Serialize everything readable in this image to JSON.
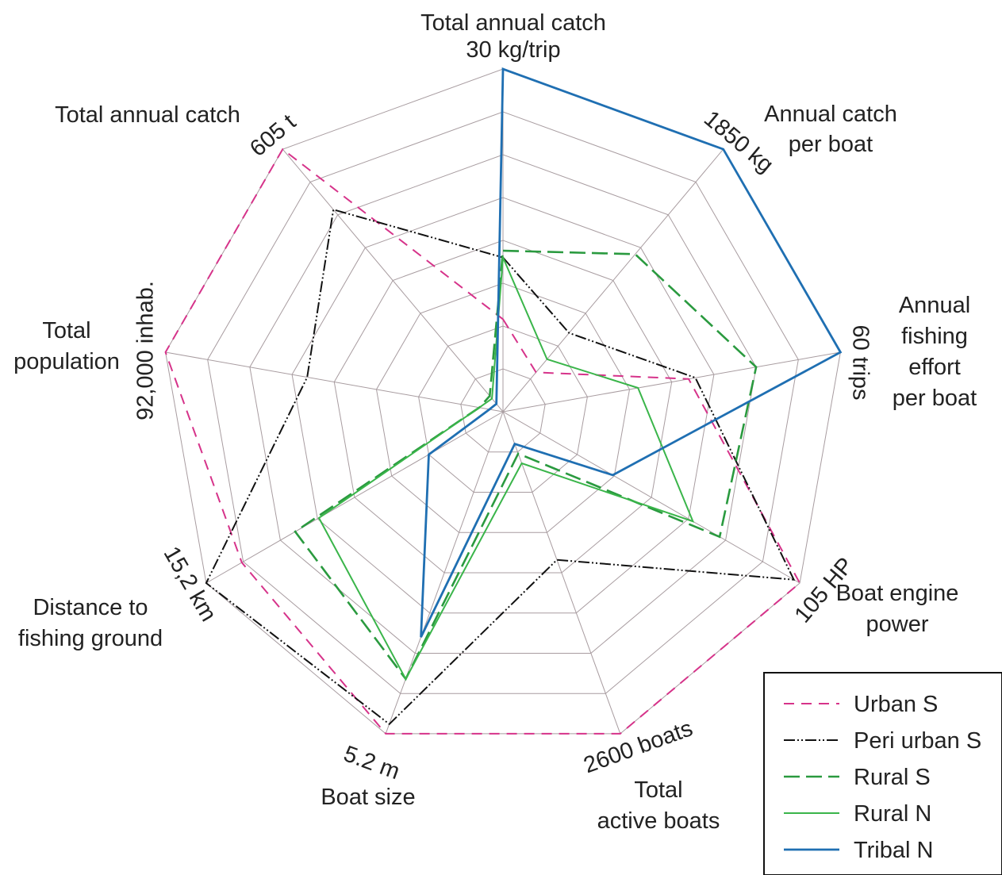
{
  "chart_data": {
    "type": "radar",
    "axes": [
      {
        "label": "Total annual catch 30 kg/trip",
        "label_lines": [
          "Total annual catch",
          "30 kg/trip"
        ],
        "max_label": ""
      },
      {
        "label": "Annual catch per boat",
        "label_lines": [
          "Annual catch",
          "per boat"
        ],
        "max_label": "1850 kg"
      },
      {
        "label": "Annual fishing effort per boat",
        "label_lines": [
          "Annual",
          "fishing",
          "effort",
          "per boat"
        ],
        "max_label": "60 trips"
      },
      {
        "label": "Boat engine power",
        "label_lines": [
          "Boat engine",
          "power"
        ],
        "max_label": "105 HP"
      },
      {
        "label": "Total active boats",
        "label_lines": [
          "Total",
          "active boats"
        ],
        "max_label": "2600 boats"
      },
      {
        "label": "Boat size",
        "label_lines": [
          "Boat size"
        ],
        "max_label": "5.2 m"
      },
      {
        "label": "Distance to fishing ground",
        "label_lines": [
          "Distance to",
          "fishing ground"
        ],
        "max_label": "15,2 km"
      },
      {
        "label": "Total population",
        "label_lines": [
          "Total",
          "population"
        ],
        "max_label": "92,000 inhab."
      },
      {
        "label": "Total annual catch",
        "label_lines": [
          "Total annual catch"
        ],
        "max_label": "605 t"
      }
    ],
    "rings": 8,
    "ylim": [
      0,
      1
    ],
    "grid": true,
    "legend_position": "bottom-right",
    "series": [
      {
        "name": "Urban S",
        "color": "#d6338a",
        "style": "dashed",
        "values": [
          0.27,
          0.15,
          0.55,
          1.0,
          1.0,
          1.0,
          0.88,
          1.0,
          1.0
        ]
      },
      {
        "name": "Peri urban S",
        "color": "#111111",
        "style": "dashdot",
        "values": [
          0.45,
          0.3,
          0.57,
          0.98,
          0.46,
          0.97,
          1.0,
          0.58,
          0.77
        ]
      },
      {
        "name": "Rural S",
        "color": "#2a9a3f",
        "style": "longdash",
        "values": [
          0.47,
          0.6,
          0.75,
          0.73,
          0.13,
          0.83,
          0.7,
          0.07,
          0.06
        ]
      },
      {
        "name": "Rural N",
        "color": "#3ab54a",
        "style": "solid",
        "values": [
          0.45,
          0.2,
          0.4,
          0.64,
          0.16,
          0.83,
          0.62,
          0.07,
          0.05
        ]
      },
      {
        "name": "Tribal N",
        "color": "#1f6fb2",
        "style": "solid",
        "values": [
          1.0,
          1.0,
          1.0,
          0.37,
          0.1,
          0.7,
          0.25,
          0.04,
          0.03
        ]
      }
    ]
  }
}
